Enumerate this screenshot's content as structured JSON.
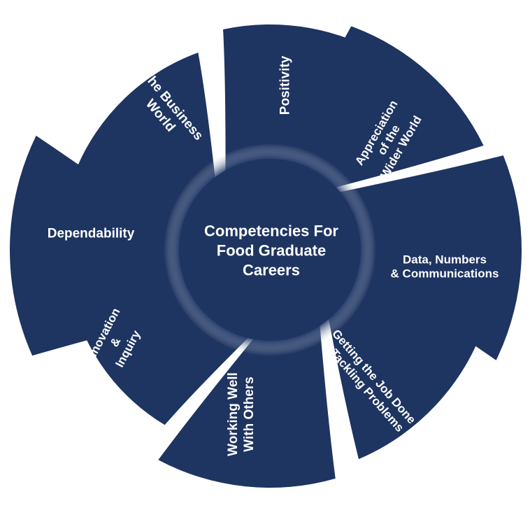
{
  "center": {
    "lines": [
      "Competencies For",
      "Food Graduate",
      "Careers"
    ]
  },
  "segments": [
    {
      "id": "positivity",
      "lines": [
        "Positivity"
      ]
    },
    {
      "id": "appreciation",
      "lines": [
        "Appreciation",
        "of the",
        "Wider World"
      ]
    },
    {
      "id": "data-numbers",
      "lines": [
        "Data, Numbers",
        "& Communications"
      ]
    },
    {
      "id": "getting-job-done",
      "lines": [
        "Getting the Job Done",
        "& Tackling Problems"
      ]
    },
    {
      "id": "working-well",
      "lines": [
        "Working Well",
        "With Others"
      ]
    },
    {
      "id": "innovation",
      "lines": [
        "Innovation",
        "&",
        "Inquiry"
      ]
    },
    {
      "id": "dependability",
      "lines": [
        "Dependability"
      ]
    },
    {
      "id": "business-world",
      "lines": [
        "The Business",
        "World"
      ]
    }
  ],
  "colors": {
    "fill": "#1e3461",
    "text": "#ffffff",
    "background": "#ffffff"
  }
}
